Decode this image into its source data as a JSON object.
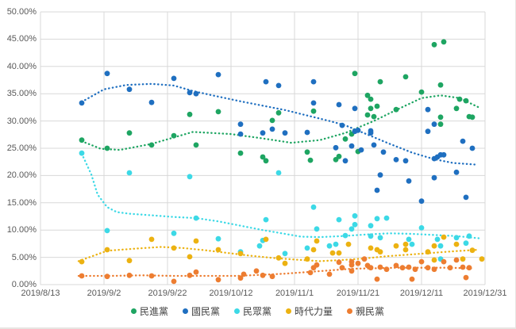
{
  "chart_data": {
    "type": "scatter",
    "title": "",
    "xlabel": "",
    "ylabel": "",
    "grid": true,
    "legend_position": "bottom",
    "x_axis": {
      "total_days": 140,
      "ticks": [
        {
          "day": 0,
          "label": "2019/8/13"
        },
        {
          "day": 20,
          "label": "2019/9/2"
        },
        {
          "day": 40,
          "label": "2019/9/22"
        },
        {
          "day": 60,
          "label": "2019/10/12"
        },
        {
          "day": 80,
          "label": "2019/11/1"
        },
        {
          "day": 100,
          "label": "2019/11/21"
        },
        {
          "day": 120,
          "label": "2019/12/11"
        },
        {
          "day": 140,
          "label": "2019/12/31"
        }
      ]
    },
    "y_axis": {
      "min": 0,
      "max": 50,
      "step": 5,
      "ticks": [
        {
          "value": 0,
          "label": "0.00%"
        },
        {
          "value": 5,
          "label": "5.00%"
        },
        {
          "value": 10,
          "label": "10.00%"
        },
        {
          "value": 15,
          "label": "15.00%"
        },
        {
          "value": 20,
          "label": "20.00%"
        },
        {
          "value": 25,
          "label": "25.00%"
        },
        {
          "value": 30,
          "label": "30.00%"
        },
        {
          "value": 35,
          "label": "35.00%"
        },
        {
          "value": 40,
          "label": "40.00%"
        },
        {
          "value": 45,
          "label": "45.00%"
        },
        {
          "value": 50,
          "label": "50.00%"
        }
      ]
    },
    "series": [
      {
        "key": "dpp",
        "name": "民進黨",
        "color": "#1ea562",
        "points": [
          [
            13,
            26.5
          ],
          [
            21,
            25.0
          ],
          [
            28,
            27.8
          ],
          [
            35,
            25.6
          ],
          [
            42,
            27.3
          ],
          [
            47,
            31.2
          ],
          [
            49,
            25.6
          ],
          [
            56,
            31.7
          ],
          [
            63,
            24.1
          ],
          [
            70,
            23.4
          ],
          [
            71,
            22.7
          ],
          [
            73,
            30.1
          ],
          [
            75,
            31.5
          ],
          [
            84,
            24.3
          ],
          [
            85,
            22.8
          ],
          [
            86,
            31.8
          ],
          [
            93,
            22.9
          ],
          [
            94,
            23.5
          ],
          [
            96,
            26.7
          ],
          [
            98,
            27.6
          ],
          [
            99,
            38.7
          ],
          [
            100,
            24.4
          ],
          [
            103,
            34.7
          ],
          [
            103,
            31.1
          ],
          [
            104,
            34.0
          ],
          [
            104,
            32.3
          ],
          [
            105,
            30.8
          ],
          [
            106,
            32.7
          ],
          [
            107,
            37.2
          ],
          [
            112,
            32.1
          ],
          [
            115,
            38.1
          ],
          [
            120,
            35.3
          ],
          [
            124,
            44.0
          ],
          [
            126,
            36.6
          ],
          [
            126,
            29.4
          ],
          [
            126,
            30.7
          ],
          [
            127,
            44.5
          ],
          [
            131,
            32.3
          ],
          [
            132,
            34.0
          ],
          [
            134,
            33.7
          ],
          [
            135,
            30.8
          ],
          [
            136,
            30.7
          ]
        ],
        "trend": [
          [
            13,
            26.3
          ],
          [
            19,
            24.9
          ],
          [
            25,
            24.7
          ],
          [
            35,
            25.8
          ],
          [
            48,
            28.0
          ],
          [
            60,
            27.6
          ],
          [
            70,
            26.8
          ],
          [
            79,
            26.0
          ],
          [
            88,
            26.5
          ],
          [
            96,
            27.8
          ],
          [
            105,
            30.0
          ],
          [
            112,
            32.0
          ],
          [
            120,
            34.2
          ],
          [
            126,
            34.7
          ],
          [
            132,
            34.2
          ],
          [
            138,
            32.5
          ]
        ]
      },
      {
        "key": "kmt",
        "name": "國民黨",
        "color": "#1f6fc0",
        "points": [
          [
            13,
            33.3
          ],
          [
            21,
            38.7
          ],
          [
            28,
            35.8
          ],
          [
            35,
            33.4
          ],
          [
            42,
            37.8
          ],
          [
            47,
            35.2
          ],
          [
            49,
            35.0
          ],
          [
            56,
            38.5
          ],
          [
            63,
            29.4
          ],
          [
            63,
            27.6
          ],
          [
            70,
            27.8
          ],
          [
            71,
            37.2
          ],
          [
            73,
            28.5
          ],
          [
            75,
            36.5
          ],
          [
            77,
            27.8
          ],
          [
            84,
            27.9
          ],
          [
            86,
            33.3
          ],
          [
            86,
            37.2
          ],
          [
            93,
            25.1
          ],
          [
            94,
            33.0
          ],
          [
            95,
            29.2
          ],
          [
            96,
            22.7
          ],
          [
            98,
            25.4
          ],
          [
            99,
            28.1
          ],
          [
            99,
            32.3
          ],
          [
            100,
            28.3
          ],
          [
            101,
            24.7
          ],
          [
            104,
            28.2
          ],
          [
            104,
            27.8
          ],
          [
            105,
            25.6
          ],
          [
            106,
            17.3
          ],
          [
            107,
            20.1
          ],
          [
            108,
            24.3
          ],
          [
            112,
            22.9
          ],
          [
            115,
            22.7
          ],
          [
            116,
            19.0
          ],
          [
            120,
            15.3
          ],
          [
            122,
            28.1
          ],
          [
            122,
            32.1
          ],
          [
            124,
            29.4
          ],
          [
            124,
            23.1
          ],
          [
            124,
            19.6
          ],
          [
            125,
            23.4
          ],
          [
            126,
            23.8
          ],
          [
            127,
            23.8
          ],
          [
            131,
            20.6
          ],
          [
            133,
            26.3
          ],
          [
            134,
            16.0
          ],
          [
            136,
            25.0
          ]
        ],
        "trend": [
          [
            13,
            33.5
          ],
          [
            20,
            35.8
          ],
          [
            27,
            36.6
          ],
          [
            35,
            36.8
          ],
          [
            42,
            36.5
          ],
          [
            48,
            35.5
          ],
          [
            55,
            34.6
          ],
          [
            63,
            33.6
          ],
          [
            70,
            32.8
          ],
          [
            77,
            32.0
          ],
          [
            84,
            31.0
          ],
          [
            91,
            30.0
          ],
          [
            96,
            29.2
          ],
          [
            103,
            27.5
          ],
          [
            110,
            25.8
          ],
          [
            117,
            24.2
          ],
          [
            124,
            23.0
          ],
          [
            130,
            22.3
          ],
          [
            137,
            22.0
          ]
        ]
      },
      {
        "key": "tpp",
        "name": "民眾黨",
        "color": "#3cd9e6",
        "points": [
          [
            13,
            24.1
          ],
          [
            21,
            9.9
          ],
          [
            28,
            20.5
          ],
          [
            42,
            9.4
          ],
          [
            47,
            19.8
          ],
          [
            49,
            12.2
          ],
          [
            56,
            8.4
          ],
          [
            63,
            6.0
          ],
          [
            69,
            7.1
          ],
          [
            70,
            8.1
          ],
          [
            71,
            11.9
          ],
          [
            75,
            20.5
          ],
          [
            77,
            5.7
          ],
          [
            84,
            6.7
          ],
          [
            86,
            14.2
          ],
          [
            87,
            10.2
          ],
          [
            91,
            7.1
          ],
          [
            93,
            7.4
          ],
          [
            94,
            11.9
          ],
          [
            96,
            9.0
          ],
          [
            98,
            10.2
          ],
          [
            99,
            12.6
          ],
          [
            99,
            11.0
          ],
          [
            104,
            10.8
          ],
          [
            104,
            8.9
          ],
          [
            106,
            12.1
          ],
          [
            107,
            8.6
          ],
          [
            109,
            12.2
          ],
          [
            116,
            8.3
          ],
          [
            117,
            7.4
          ],
          [
            120,
            10.4
          ],
          [
            125,
            8.3
          ],
          [
            126,
            7.1
          ],
          [
            126,
            4.7
          ],
          [
            131,
            8.6
          ],
          [
            134,
            7.6
          ],
          [
            135,
            8.9
          ]
        ],
        "trend": [
          [
            13,
            24.0
          ],
          [
            16,
            20.2
          ],
          [
            18,
            16.5
          ],
          [
            21,
            14.2
          ],
          [
            24,
            13.3
          ],
          [
            28,
            13.0
          ],
          [
            35,
            12.7
          ],
          [
            42,
            12.4
          ],
          [
            49,
            12.2
          ],
          [
            56,
            11.6
          ],
          [
            63,
            10.8
          ],
          [
            70,
            10.0
          ],
          [
            77,
            9.3
          ],
          [
            82,
            8.8
          ],
          [
            88,
            8.7
          ],
          [
            95,
            8.9
          ],
          [
            103,
            9.2
          ],
          [
            110,
            9.4
          ],
          [
            117,
            9.3
          ],
          [
            124,
            9.1
          ],
          [
            131,
            8.9
          ],
          [
            138,
            8.5
          ]
        ]
      },
      {
        "key": "npp",
        "name": "時代力量",
        "color": "#ecb211",
        "points": [
          [
            13,
            4.2
          ],
          [
            21,
            6.4
          ],
          [
            28,
            4.4
          ],
          [
            35,
            8.3
          ],
          [
            42,
            6.7
          ],
          [
            47,
            5.1
          ],
          [
            49,
            8.0
          ],
          [
            56,
            6.4
          ],
          [
            63,
            5.7
          ],
          [
            71,
            8.3
          ],
          [
            75,
            4.9
          ],
          [
            77,
            3.9
          ],
          [
            84,
            4.7
          ],
          [
            86,
            6.4
          ],
          [
            87,
            8.0
          ],
          [
            92,
            5.8
          ],
          [
            94,
            5.8
          ],
          [
            97,
            7.4
          ],
          [
            104,
            6.7
          ],
          [
            106,
            6.4
          ],
          [
            107,
            6.0
          ],
          [
            112,
            7.1
          ],
          [
            115,
            7.4
          ],
          [
            115,
            6.4
          ],
          [
            122,
            6.0
          ],
          [
            124,
            7.1
          ],
          [
            124,
            4.5
          ],
          [
            127,
            8.7
          ],
          [
            131,
            7.4
          ],
          [
            133,
            4.7
          ],
          [
            136,
            6.3
          ],
          [
            139,
            4.7
          ]
        ],
        "trend": [
          [
            12,
            4.3
          ],
          [
            21,
            6.2
          ],
          [
            30,
            6.6
          ],
          [
            38,
            6.9
          ],
          [
            45,
            6.7
          ],
          [
            52,
            6.3
          ],
          [
            59,
            5.8
          ],
          [
            66,
            5.3
          ],
          [
            73,
            4.9
          ],
          [
            80,
            4.6
          ],
          [
            88,
            4.3
          ],
          [
            95,
            4.5
          ],
          [
            102,
            4.8
          ],
          [
            109,
            5.2
          ],
          [
            116,
            5.5
          ],
          [
            123,
            5.8
          ],
          [
            130,
            6.1
          ],
          [
            138,
            6.4
          ]
        ]
      },
      {
        "key": "pfp",
        "name": "親民黨",
        "color": "#ed7d31",
        "points": [
          [
            13,
            1.6
          ],
          [
            21,
            1.5
          ],
          [
            28,
            1.7
          ],
          [
            35,
            1.6
          ],
          [
            42,
            0.6
          ],
          [
            47,
            1.7
          ],
          [
            49,
            2.3
          ],
          [
            56,
            0.9
          ],
          [
            63,
            1.2
          ],
          [
            64,
            1.9
          ],
          [
            68,
            2.5
          ],
          [
            70,
            1.7
          ],
          [
            73,
            1.5
          ],
          [
            85,
            2.2
          ],
          [
            86,
            3.1
          ],
          [
            87,
            3.6
          ],
          [
            91,
            1.9
          ],
          [
            94,
            4.1
          ],
          [
            95,
            3.1
          ],
          [
            98,
            3.6
          ],
          [
            98,
            2.5
          ],
          [
            98,
            4.2
          ],
          [
            100,
            3.9
          ],
          [
            102,
            4.7
          ],
          [
            103,
            3.5
          ],
          [
            104,
            3.1
          ],
          [
            106,
            1.0
          ],
          [
            107,
            3.2
          ],
          [
            109,
            2.8
          ],
          [
            112,
            3.5
          ],
          [
            114,
            3.1
          ],
          [
            116,
            3.2
          ],
          [
            117,
            1.0
          ],
          [
            118,
            2.8
          ],
          [
            120,
            4.2
          ],
          [
            122,
            3.1
          ],
          [
            124,
            2.8
          ],
          [
            127,
            4.2
          ],
          [
            129,
            3.1
          ],
          [
            131,
            4.5
          ],
          [
            133,
            3.2
          ],
          [
            134,
            1.3
          ],
          [
            135,
            3.1
          ]
        ],
        "trend": [
          [
            12,
            1.6
          ],
          [
            22,
            1.6
          ],
          [
            32,
            1.7
          ],
          [
            42,
            1.6
          ],
          [
            52,
            1.6
          ],
          [
            62,
            1.6
          ],
          [
            70,
            1.8
          ],
          [
            77,
            2.0
          ],
          [
            84,
            2.3
          ],
          [
            91,
            2.6
          ],
          [
            98,
            2.9
          ],
          [
            105,
            3.0
          ],
          [
            112,
            3.1
          ],
          [
            120,
            3.1
          ],
          [
            128,
            3.1
          ],
          [
            136,
            3.0
          ]
        ]
      }
    ],
    "style": {
      "gridline_color": "#d8d8d8",
      "axis_text_color": "#595959",
      "legend_text_color": "#404040",
      "marker_radius": 3.4
    }
  }
}
